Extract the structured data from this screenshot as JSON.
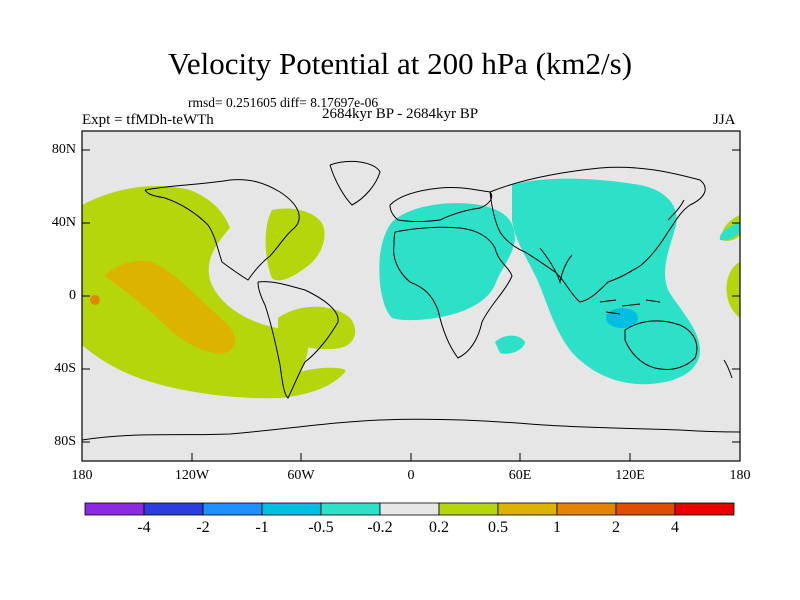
{
  "title": "Velocity Potential at 200 hPa (km2/s)",
  "stats_line": "rmsd= 0.251605 diff= 8.17697e-06",
  "period_line": "2684kyr BP - 2684kyr BP",
  "experiment_label": "Expt = tfMDh-teWTh",
  "season_label": "JJA",
  "y_axis_ticks": [
    "80N",
    "40N",
    "0",
    "40S",
    "80S"
  ],
  "x_axis_ticks": [
    "180",
    "120W",
    "60W",
    "0",
    "60E",
    "120E",
    "180"
  ],
  "colorbar": {
    "colors": [
      "#8a2be2",
      "#2b3de0",
      "#1e90ff",
      "#00bfe0",
      "#2de0c8",
      "#e6e6e6",
      "#b4d60b",
      "#dcb400",
      "#e28600",
      "#e14d00",
      "#e60000"
    ],
    "labels": [
      "-4",
      "-2",
      "-1",
      "-0.5",
      "-0.2",
      "0.2",
      "0.5",
      "1",
      "2",
      "4"
    ]
  },
  "map_colors": {
    "background": "#e6e6e6",
    "positive_weak": "#b4d60b",
    "positive_mid": "#dcb400",
    "positive_strong": "#e28600",
    "negative_weak": "#2de0c8",
    "negative_mid": "#00bfe0"
  }
}
